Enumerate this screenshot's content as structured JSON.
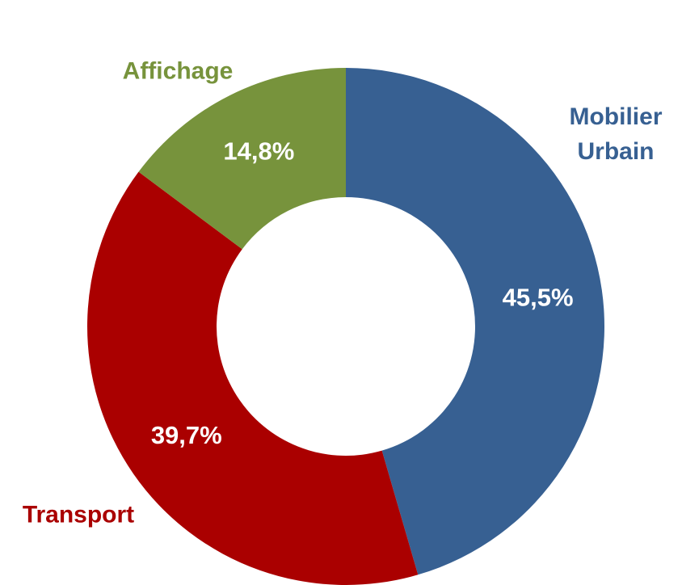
{
  "chart_data": {
    "type": "donut",
    "categories": [
      "Mobilier Urbain",
      "Transport",
      "Affichage"
    ],
    "values": [
      45.5,
      39.7,
      14.8
    ],
    "value_labels": [
      "45,5%",
      "39,7%",
      "14,8%"
    ],
    "colors": [
      "#376092",
      "#aa0000",
      "#77933c"
    ]
  }
}
